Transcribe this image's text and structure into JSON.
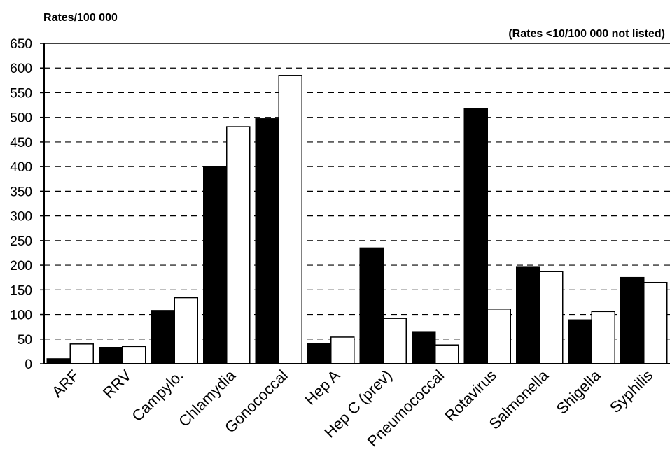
{
  "chart_data": {
    "type": "bar",
    "ylabel": "Rates/100 000",
    "note": "(Rates <10/100 000 not listed)",
    "xlabel": "",
    "title": "",
    "ylim": [
      0,
      650
    ],
    "yticks": [
      0,
      50,
      100,
      150,
      200,
      250,
      300,
      350,
      400,
      450,
      500,
      550,
      600,
      650
    ],
    "grid": "dashed horizontal",
    "categories": [
      "ARF",
      "RRV",
      "Campylo.",
      "Chlamydia",
      "Gonococcal",
      "Hep A",
      "Hep C (prev)",
      "Pneumococcal",
      "Rotavirus",
      "Salmonella",
      "Shigella",
      "Syphilis"
    ],
    "series": [
      {
        "color": "#000000",
        "values": [
          10,
          33,
          108,
          400,
          497,
          41,
          235,
          65,
          518,
          197,
          89,
          175
        ]
      },
      {
        "color": "#ffffff",
        "values": [
          40,
          35,
          134,
          481,
          585,
          54,
          92,
          38,
          111,
          187,
          106,
          165
        ]
      }
    ]
  }
}
